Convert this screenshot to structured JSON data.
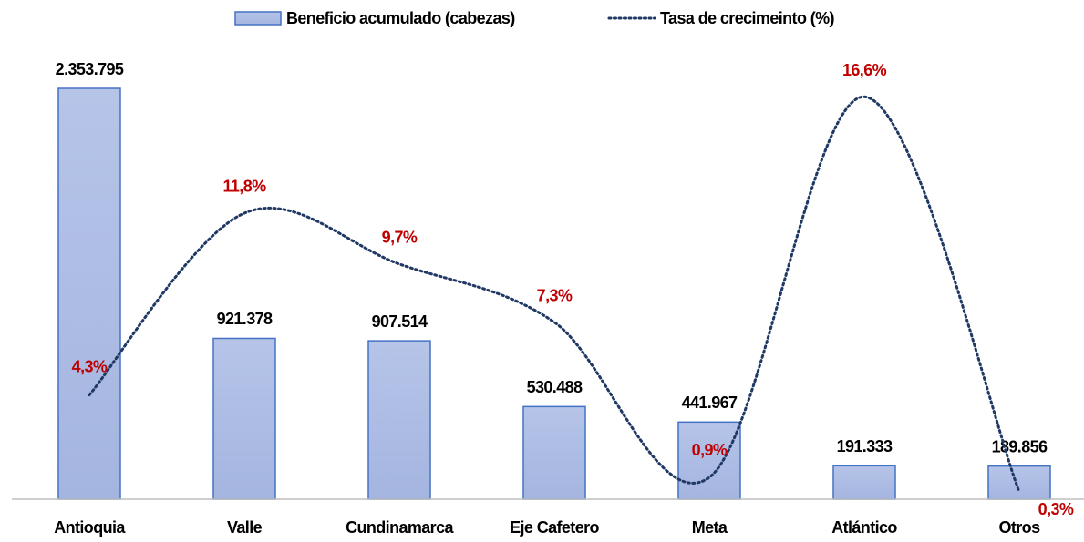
{
  "chart_data": {
    "type": "bar",
    "categories": [
      "Antioquia",
      "Valle",
      "Cundinamarca",
      "Eje Cafetero",
      "Meta",
      "Atlántico",
      "Otros"
    ],
    "series": [
      {
        "name": "Beneficio acumulado (cabezas)",
        "type": "bar",
        "color": "#a4b5e0",
        "edge_color": "#4472c4",
        "values": [
          2353795,
          921378,
          907514,
          530488,
          441967,
          191333,
          189856
        ],
        "value_labels": [
          "2.353.795",
          "921.378",
          "907.514",
          "530.488",
          "441.967",
          "191.333",
          "189.856"
        ]
      },
      {
        "name": "Tasa de crecimeinto (%)",
        "type": "line",
        "axis": "y2",
        "color": "#1f3864",
        "line_style": "dotted",
        "values": [
          4.3,
          11.8,
          9.7,
          7.3,
          0.9,
          16.6,
          0.3
        ],
        "value_labels": [
          "4,3%",
          "11,8%",
          "9,7%",
          "7,3%",
          "0,9%",
          "16,6%",
          "0,3%"
        ]
      }
    ],
    "ylim": [
      0,
      2500000
    ],
    "y2lim": [
      0,
      18
    ],
    "legend": "top"
  }
}
